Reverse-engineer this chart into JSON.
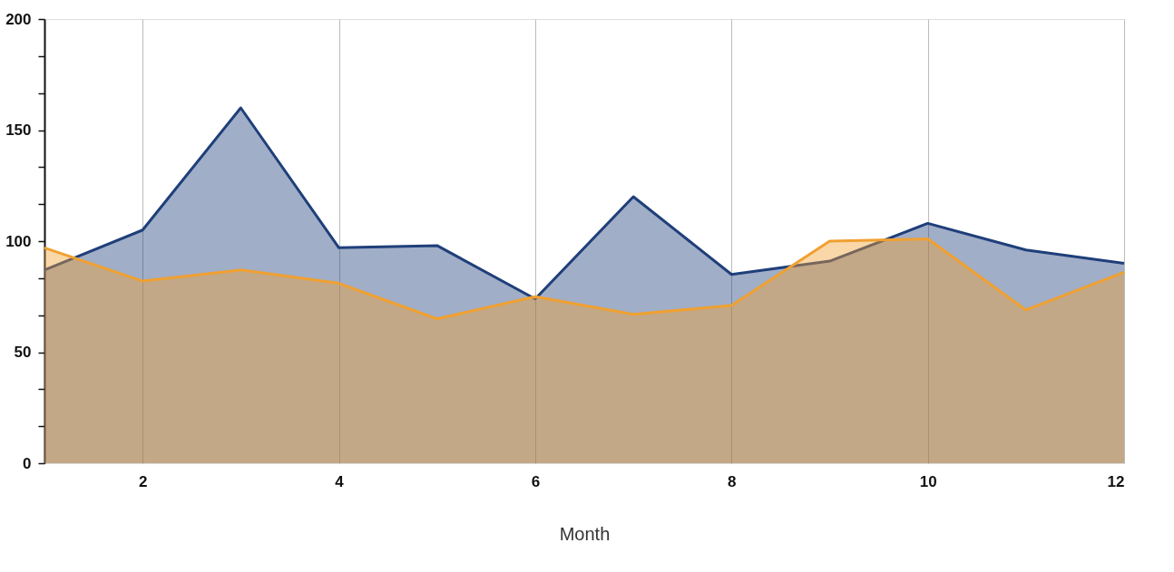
{
  "chart_data": {
    "type": "area",
    "xlabel": "Month",
    "x": [
      1,
      2,
      3,
      4,
      5,
      6,
      7,
      8,
      9,
      10,
      11,
      12
    ],
    "series": [
      {
        "color": "#1f3f7a",
        "values": [
          87,
          105,
          160,
          97,
          98,
          74,
          120,
          85,
          91,
          108,
          96,
          90
        ]
      },
      {
        "color": "#f0a030",
        "values": [
          97,
          82,
          87,
          81,
          65,
          75,
          67,
          71,
          100,
          101,
          69,
          86
        ]
      }
    ],
    "xlim": [
      1,
      12
    ],
    "xticks": [
      2,
      4,
      6,
      8,
      10,
      12
    ],
    "ylim": [
      0,
      200
    ],
    "yticks": [
      0,
      {
        "value": 16.7,
        "label": null
      },
      {
        "value": 33.3,
        "label": null
      },
      50,
      {
        "value": 66.7,
        "label": null
      },
      {
        "value": 83.3,
        "label": null
      },
      100,
      {
        "value": 116.7,
        "label": null
      },
      {
        "value": 133.3,
        "label": null
      },
      150,
      {
        "value": 166.7,
        "label": null
      },
      {
        "value": 183.3,
        "label": null
      },
      200
    ],
    "grid": "x",
    "line_style": "solid"
  }
}
